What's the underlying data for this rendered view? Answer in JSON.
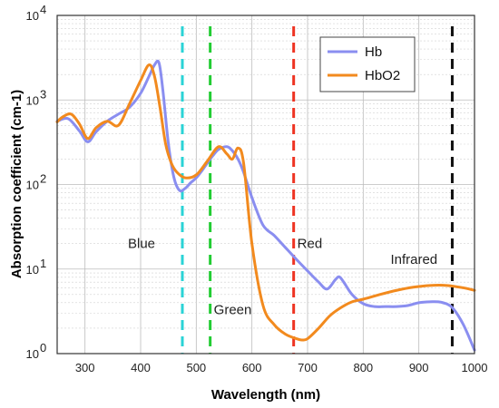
{
  "chart_data": {
    "type": "line",
    "xlabel": "Wavelength (nm)",
    "ylabel": "Absorption coefficient (cm-1)",
    "xlim": [
      250,
      1000
    ],
    "ylim": [
      1,
      10000
    ],
    "y_scale": "log",
    "grid": true,
    "legend_position": "top-right",
    "x_ticks": [
      "300",
      "400",
      "500",
      "600",
      "700",
      "800",
      "900",
      "1000"
    ],
    "y_ticks": [
      {
        "base": "10",
        "exp": "0"
      },
      {
        "base": "10",
        "exp": "1"
      },
      {
        "base": "10",
        "exp": "2"
      },
      {
        "base": "10",
        "exp": "3"
      },
      {
        "base": "10",
        "exp": "4"
      }
    ],
    "series": [
      {
        "name": "Hb",
        "color": "#8a8ef0",
        "x": [
          250,
          270,
          290,
          305,
          320,
          340,
          360,
          380,
          400,
          415,
          425,
          433,
          440,
          450,
          460,
          470,
          480,
          490,
          500,
          510,
          520,
          530,
          540,
          555,
          565,
          575,
          585,
          600,
          620,
          640,
          660,
          680,
          700,
          720,
          735,
          750,
          757,
          765,
          780,
          800,
          820,
          840,
          860,
          880,
          900,
          920,
          940,
          960,
          980,
          1000
        ],
        "y": [
          560,
          600,
          430,
          320,
          420,
          560,
          680,
          820,
          1200,
          1900,
          2600,
          2750,
          1300,
          300,
          120,
          85,
          90,
          105,
          120,
          145,
          180,
          220,
          260,
          280,
          250,
          200,
          140,
          70,
          33,
          25,
          18,
          13,
          9.5,
          7,
          5.8,
          7.5,
          8.1,
          7,
          5,
          3.9,
          3.6,
          3.6,
          3.6,
          3.7,
          4,
          4.1,
          4.05,
          3.5,
          2.2,
          1.1
        ]
      },
      {
        "name": "HbO2",
        "color": "#f28a1e",
        "x": [
          250,
          260,
          275,
          290,
          305,
          320,
          340,
          360,
          380,
          400,
          415,
          425,
          435,
          445,
          455,
          465,
          480,
          500,
          520,
          540,
          555,
          565,
          575,
          585,
          600,
          620,
          640,
          660,
          680,
          690,
          700,
          720,
          740,
          760,
          780,
          800,
          830,
          860,
          890,
          920,
          950,
          980,
          1000
        ],
        "y": [
          550,
          630,
          680,
          520,
          350,
          470,
          560,
          500,
          900,
          1700,
          2600,
          1900,
          800,
          300,
          180,
          140,
          120,
          130,
          190,
          280,
          230,
          200,
          270,
          180,
          20,
          3.7,
          2.2,
          1.7,
          1.5,
          1.45,
          1.5,
          2,
          2.8,
          3.5,
          4.1,
          4.4,
          5,
          5.6,
          6.1,
          6.4,
          6.4,
          6,
          5.6
        ]
      }
    ],
    "reference_lines": [
      {
        "label": "Blue",
        "wavelength": 475,
        "color": "#2ad3d6"
      },
      {
        "label": "Green",
        "wavelength": 525,
        "color": "#22cc33"
      },
      {
        "label": "Red",
        "wavelength": 675,
        "color": "#ee3322"
      },
      {
        "label": "Infrared",
        "wavelength": 960,
        "color": "#111111"
      }
    ]
  }
}
